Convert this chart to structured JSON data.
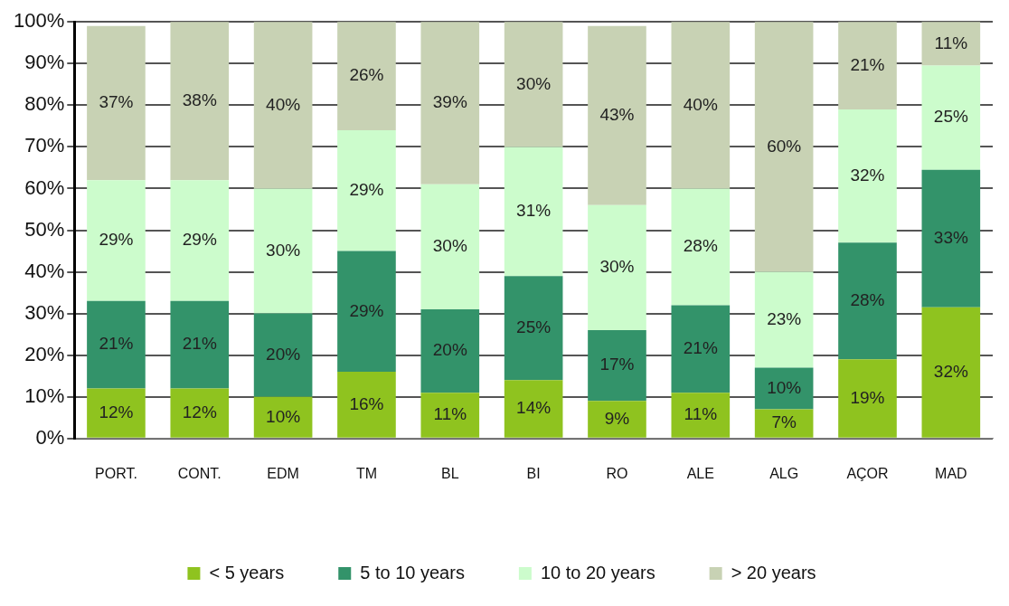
{
  "chart_data": {
    "type": "bar",
    "stacked": true,
    "categories": [
      "PORT.",
      "CONT.",
      "EDM",
      "TM",
      "BL",
      "BI",
      "RO",
      "ALE",
      "ALG",
      "AÇOR",
      "MAD"
    ],
    "series": [
      {
        "name": "< 5 years",
        "color": "#8fc31f",
        "values": [
          12,
          12,
          10,
          16,
          11,
          14,
          9,
          11,
          7,
          19,
          31.5
        ],
        "value_labels": [
          "12%",
          "12%",
          "10%",
          "16%",
          "11%",
          "14%",
          "9%",
          "11%",
          "7%",
          "19%",
          "32%"
        ]
      },
      {
        "name": "5 to 10 years",
        "color": "#33936a",
        "values": [
          21,
          21,
          20,
          29,
          20,
          25,
          17,
          21,
          10,
          28,
          33
        ],
        "value_labels": [
          "21%",
          "21%",
          "20%",
          "29%",
          "20%",
          "25%",
          "17%",
          "21%",
          "10%",
          "28%",
          "33%"
        ]
      },
      {
        "name": "10 to 20 years",
        "color": "#ccfccc",
        "values": [
          29,
          29,
          30,
          29,
          30,
          31,
          30,
          28,
          23,
          32,
          25
        ],
        "value_labels": [
          "29%",
          "29%",
          "30%",
          "29%",
          "30%",
          "31%",
          "30%",
          "28%",
          "23%",
          "32%",
          "25%"
        ]
      },
      {
        "name": "> 20 years",
        "color": "#c8d2b4",
        "values": [
          37,
          38,
          40,
          26,
          39,
          30,
          43,
          40,
          60,
          21,
          10.5
        ],
        "value_labels": [
          "37%",
          "38%",
          "40%",
          "26%",
          "39%",
          "30%",
          "43%",
          "40%",
          "60%",
          "21%",
          "11%"
        ]
      }
    ],
    "ylim": [
      0,
      100
    ],
    "yticks": [
      {
        "value": 0,
        "label": "0%"
      },
      {
        "value": 10,
        "label": "10%"
      },
      {
        "value": 20,
        "label": "20%"
      },
      {
        "value": 30,
        "label": "30%"
      },
      {
        "value": 40,
        "label": "40%"
      },
      {
        "value": 50,
        "label": "50%"
      },
      {
        "value": 60,
        "label": "60%"
      },
      {
        "value": 70,
        "label": "70%"
      },
      {
        "value": 80,
        "label": "80%"
      },
      {
        "value": 90,
        "label": "90%"
      },
      {
        "value": 100,
        "label": "100%"
      }
    ],
    "grid": "y",
    "legend": "bottom"
  }
}
